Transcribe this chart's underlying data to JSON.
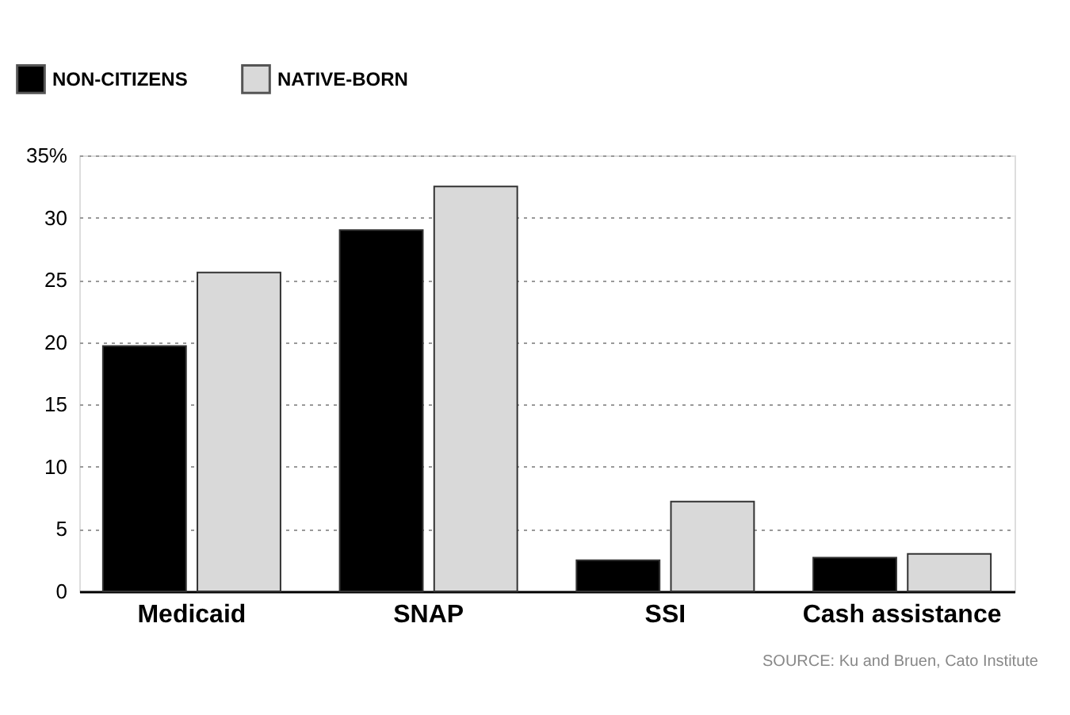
{
  "chart_data": {
    "type": "bar",
    "categories": [
      "Medicaid",
      "SNAP",
      "SSI",
      "Cash assistance"
    ],
    "series": [
      {
        "name": "NON-CITIZENS",
        "color": "#000000",
        "values": [
          19.7,
          29.0,
          2.5,
          2.7
        ]
      },
      {
        "name": "NATIVE-BORN",
        "color": "#d9d9d9",
        "values": [
          25.6,
          32.5,
          7.2,
          3.0
        ]
      }
    ],
    "ylim": [
      0,
      35
    ],
    "yticks": [
      0,
      5,
      10,
      15,
      20,
      25,
      30,
      {
        "value": 35,
        "label": "35%"
      }
    ],
    "grid": "y",
    "legend": "top left",
    "annotations": [
      "SOURCE: Ku and Bruen, Cato Institute"
    ]
  }
}
